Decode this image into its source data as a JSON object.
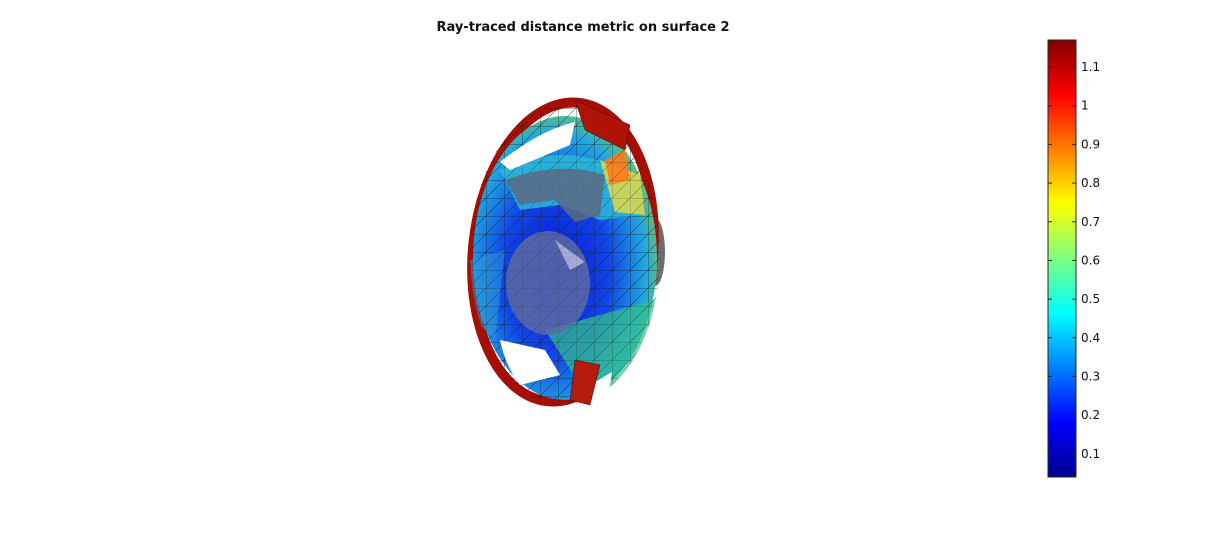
{
  "chart_data": {
    "type": "surface",
    "title": "Ray-traced distance metric on surface 2",
    "colormap": "jet",
    "colorbar": {
      "position": "right",
      "clim": [
        0.04,
        1.17
      ],
      "ticks": [
        0.1,
        0.2,
        0.3,
        0.4,
        0.5,
        0.6,
        0.7,
        0.8,
        0.9,
        1,
        1.1
      ],
      "tick_labels": [
        "0.1",
        "0.2",
        "0.3",
        "0.4",
        "0.5",
        "0.6",
        "0.7",
        "0.8",
        "0.9",
        "1",
        "1.1"
      ]
    },
    "axes_visible": false
  }
}
